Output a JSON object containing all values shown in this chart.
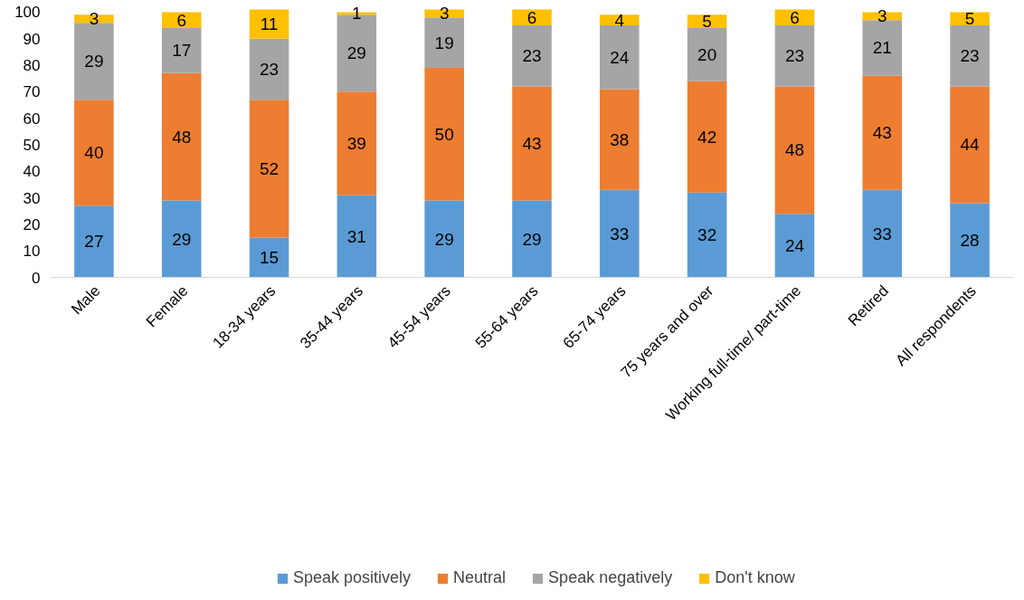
{
  "chart_data": {
    "type": "bar",
    "stacked": true,
    "data_labels": true,
    "legend": "bottom",
    "grid": false,
    "categories": [
      "Male",
      "Female",
      "18-34 years",
      "35-44 years",
      "45-54 years",
      "55-64 years",
      "65-74 years",
      "75 years and over",
      "Working full-time/ part-time",
      "Retired",
      "All respondents"
    ],
    "ylim": [
      0,
      101
    ],
    "yticks": [
      0,
      10,
      20,
      30,
      40,
      50,
      60,
      70,
      80,
      90,
      100
    ],
    "series": [
      {
        "name": "Speak positively",
        "color": "#5b9bd5",
        "values": [
          27,
          29,
          15,
          31,
          29,
          29,
          33,
          32,
          24,
          33,
          28
        ]
      },
      {
        "name": "Neutral",
        "color": "#ed7d31",
        "values": [
          40,
          48,
          52,
          39,
          50,
          43,
          38,
          42,
          48,
          43,
          44
        ]
      },
      {
        "name": "Speak negatively",
        "color": "#a5a5a5",
        "values": [
          29,
          17,
          23,
          29,
          19,
          23,
          24,
          20,
          23,
          21,
          23
        ]
      },
      {
        "name": "Don't know",
        "color": "#ffc000",
        "values": [
          3,
          6,
          11,
          1,
          3,
          6,
          4,
          5,
          6,
          3,
          5
        ]
      }
    ]
  }
}
